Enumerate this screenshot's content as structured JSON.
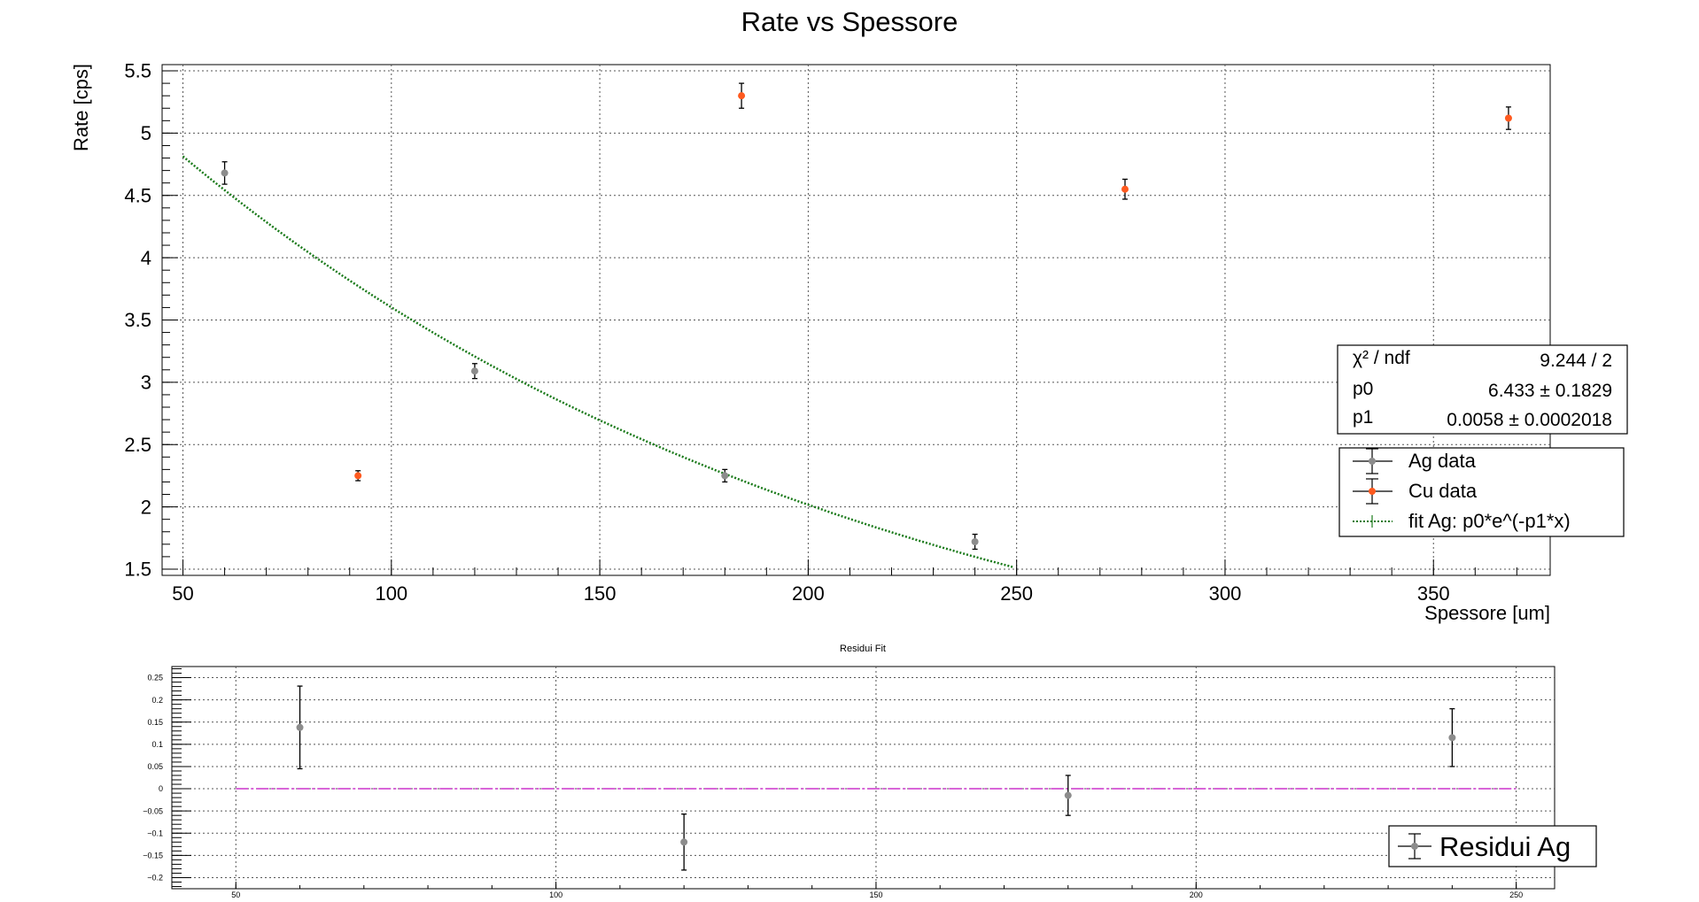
{
  "canvas_title": "Rate vs Spessore",
  "chart_data": [
    {
      "type": "scatter",
      "title": "Rate vs Spessore",
      "xlabel": "Spessore [um]",
      "ylabel": "Rate [cps]",
      "xlim": [
        45,
        378
      ],
      "ylim": [
        1.45,
        5.55
      ],
      "grid": true,
      "x_ticks": [
        50,
        100,
        150,
        200,
        250,
        300,
        350
      ],
      "y_ticks": [
        1.5,
        2,
        2.5,
        3,
        3.5,
        4,
        4.5,
        5,
        5.5
      ],
      "x_tick_labels": [
        "50",
        "100",
        "150",
        "200",
        "250",
        "300",
        "350"
      ],
      "y_tick_labels": [
        "1.5",
        "2",
        "2.5",
        "3",
        "3.5",
        "4",
        "4.5",
        "5",
        "5.5"
      ],
      "series": [
        {
          "name": "Ag data",
          "color": "#8c8c8c",
          "x": [
            60,
            120,
            180,
            240
          ],
          "y": [
            4.68,
            3.09,
            2.25,
            1.72
          ],
          "yerr": [
            0.09,
            0.06,
            0.05,
            0.06
          ]
        },
        {
          "name": "Cu data",
          "color": "#ff5a1f",
          "x": [
            92,
            184,
            276,
            368
          ],
          "y": [
            2.25,
            5.3,
            4.55,
            5.12
          ],
          "yerr": [
            0.04,
            0.1,
            0.08,
            0.09
          ]
        }
      ],
      "fit": {
        "name": "fit Ag: p0*e^(-p1*x)",
        "color": "#1a7a1a",
        "p0": 6.433,
        "p1": 0.0058,
        "x_range": [
          50,
          249
        ]
      },
      "stats": {
        "rows": [
          {
            "label": "χ² / ndf",
            "value": "9.244 / 2"
          },
          {
            "label": "p0",
            "value": "6.433 ± 0.1829"
          },
          {
            "label": "p1",
            "value": "0.0058 ± 0.0002018"
          }
        ]
      },
      "legend": {
        "placement": "right",
        "entries": [
          "Ag data",
          "Cu data",
          "fit Ag: p0*e^(-p1*x)"
        ]
      }
    },
    {
      "type": "scatter",
      "title": "Residui Fit",
      "xlabel": "",
      "ylabel": "",
      "xlim": [
        40,
        256
      ],
      "ylim": [
        -0.225,
        0.275
      ],
      "grid": true,
      "x_ticks": [
        50,
        100,
        150,
        200,
        250
      ],
      "y_ticks": [
        -0.2,
        -0.15,
        -0.1,
        -0.05,
        0,
        0.05,
        0.1,
        0.15,
        0.2,
        0.25
      ],
      "x_tick_labels": [
        "50",
        "100",
        "150",
        "200",
        "250"
      ],
      "y_tick_labels": [
        "−0.2",
        "−0.15",
        "−0.1",
        "−0.05",
        "0",
        "0.05",
        "0.1",
        "0.15",
        "0.2",
        "0.25"
      ],
      "series": [
        {
          "name": "Residui Ag",
          "color": "#8c8c8c",
          "x": [
            60,
            120,
            180,
            240
          ],
          "y": [
            0.138,
            -0.12,
            -0.015,
            0.115
          ],
          "yerr": [
            0.093,
            0.063,
            0.045,
            0.065
          ]
        }
      ],
      "zero_line": {
        "color": "#cc33cc",
        "x_range": [
          50,
          250
        ]
      },
      "legend": {
        "placement": "bottom-right",
        "entries": [
          "Residui Ag"
        ]
      }
    }
  ]
}
